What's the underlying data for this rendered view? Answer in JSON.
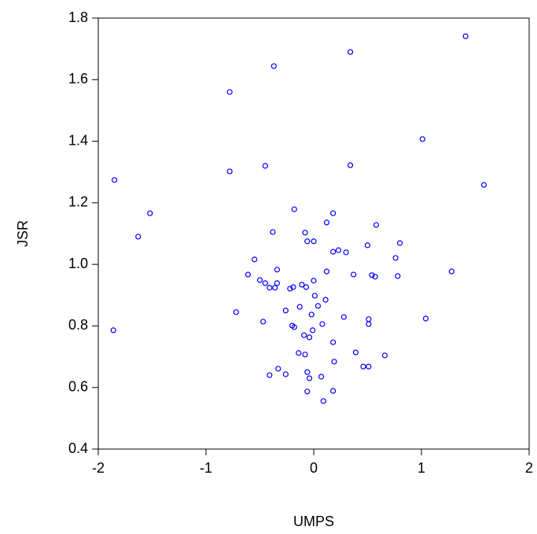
{
  "chart_data": {
    "type": "scatter",
    "x_label": "UMPS",
    "y_label": "JSR",
    "color": "#0000ff",
    "xlim": [
      -2,
      2
    ],
    "xticks": [
      -2,
      -1,
      0,
      1,
      2
    ],
    "ylim": [
      0.4,
      1.8
    ],
    "yticks": [
      0.4,
      0.6,
      0.8,
      {
        "value": 1,
        "label": "1.0"
      },
      1.2,
      1.4,
      1.6,
      1.8
    ],
    "x": [
      1.41,
      0.34,
      -0.37,
      -0.78,
      1.01,
      -0.78,
      -0.45,
      0.34,
      -1.85,
      1.58,
      -1.52,
      -1.63,
      -0.18,
      0.18,
      0.12,
      0.58,
      -0.38,
      -0.08,
      -0.06,
      0.0,
      0.8,
      0.5,
      0.23,
      0.18,
      0.3,
      0.76,
      -0.55,
      -0.34,
      0.12,
      1.28,
      -0.61,
      0.37,
      0.54,
      0.57,
      0.78,
      -0.5,
      0.0,
      -0.45,
      -0.34,
      -0.11,
      -0.07,
      -0.41,
      -0.36,
      -0.19,
      -0.22,
      0.01,
      0.11,
      0.04,
      -0.13,
      -0.72,
      -0.26,
      -0.02,
      0.28,
      1.04,
      0.51,
      0.51,
      -0.47,
      0.08,
      -0.2,
      -0.18,
      -0.01,
      -1.86,
      -0.09,
      -0.04,
      0.18,
      0.39,
      -0.14,
      0.66,
      -0.08,
      0.19,
      0.46,
      0.51,
      -0.33,
      -0.06,
      -0.41,
      -0.26,
      0.07,
      -0.04,
      0.18,
      -0.06,
      0.09
    ],
    "values": [
      1.741,
      1.69,
      1.644,
      1.56,
      1.407,
      1.302,
      1.32,
      1.322,
      1.274,
      1.258,
      1.166,
      1.09,
      1.179,
      1.166,
      1.136,
      1.128,
      1.105,
      1.103,
      1.075,
      1.075,
      1.069,
      1.062,
      1.046,
      1.041,
      1.039,
      1.021,
      1.016,
      0.983,
      0.977,
      0.977,
      0.967,
      0.967,
      0.965,
      0.96,
      0.962,
      0.949,
      0.947,
      0.939,
      0.939,
      0.934,
      0.926,
      0.924,
      0.924,
      0.926,
      0.921,
      0.898,
      0.885,
      0.865,
      0.862,
      0.845,
      0.85,
      0.837,
      0.829,
      0.824,
      0.822,
      0.806,
      0.814,
      0.806,
      0.801,
      0.796,
      0.786,
      0.786,
      0.77,
      0.763,
      0.747,
      0.714,
      0.712,
      0.704,
      0.707,
      0.684,
      0.668,
      0.668,
      0.661,
      0.65,
      0.64,
      0.643,
      0.635,
      0.63,
      0.589,
      0.587,
      0.556
    ]
  }
}
